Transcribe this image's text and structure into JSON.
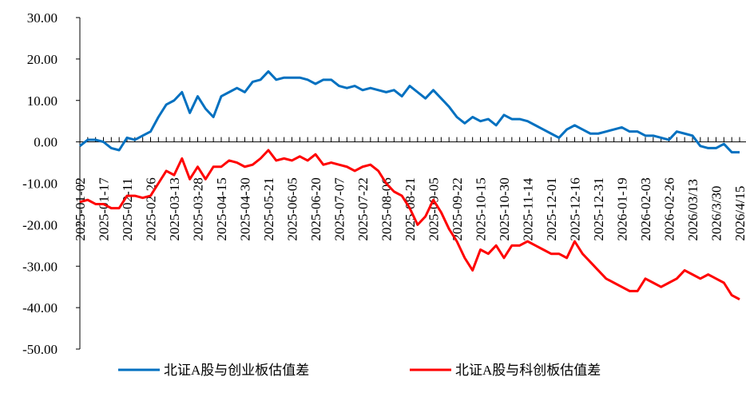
{
  "chart_data": {
    "type": "line",
    "categories": [
      "2025-01-02",
      null,
      null,
      "2025-01-17",
      null,
      null,
      "2025-02-11",
      null,
      null,
      "2025-02-26",
      null,
      null,
      "2025-03-13",
      null,
      null,
      "2025-03-28",
      null,
      null,
      "2025-04-15",
      null,
      null,
      "2025-04-30",
      null,
      null,
      "2025-05-21",
      null,
      null,
      "2025-06-05",
      null,
      null,
      "2025-06-20",
      null,
      null,
      "2025-07-07",
      null,
      null,
      "2025-07-22",
      null,
      null,
      "2025-08-06",
      null,
      null,
      "2025-08-21",
      null,
      null,
      "2025-09-05",
      null,
      null,
      "2025-09-22",
      null,
      null,
      "2025-10-15",
      null,
      null,
      "2025-10-30",
      null,
      null,
      "2025-11-14",
      null,
      null,
      "2025-12-01",
      null,
      null,
      "2025-12-16",
      null,
      null,
      "2025-12-31",
      null,
      null,
      "2026-01-19",
      null,
      null,
      "2026-02-03",
      null,
      null,
      "2026-02-26",
      null,
      null,
      "2026/03/13",
      null,
      null,
      "2026/3/30",
      null,
      null,
      "2026/4/15"
    ],
    "series": [
      {
        "name": "北证A股与创业板估值差",
        "color": "#0070c0",
        "values": [
          -1,
          0.5,
          0.5,
          0,
          -1.5,
          -2,
          1,
          0.5,
          1.5,
          2.5,
          6,
          9,
          10,
          12,
          7,
          11,
          8,
          6,
          11,
          12,
          13,
          12,
          14.5,
          15,
          17,
          15,
          15.5,
          15.5,
          15.5,
          15,
          14,
          15,
          15,
          13.5,
          13,
          13.5,
          12.5,
          13,
          12.5,
          12,
          12.5,
          11,
          13.5,
          12,
          10.5,
          12.5,
          10.5,
          8.5,
          6,
          4.5,
          6,
          5,
          5.5,
          4,
          6.5,
          5.5,
          5.5,
          5,
          4,
          3,
          2,
          1,
          3,
          4,
          3,
          2,
          2,
          2.5,
          3,
          3.5,
          2.5,
          2.5,
          1.5,
          1.5,
          1,
          0.5,
          2.5,
          2,
          1.5,
          -1,
          -1.5,
          -1.5,
          -0.5,
          -2.5,
          -2.5
        ]
      },
      {
        "name": "北证A股与科创板估值差",
        "color": "#ff0000",
        "values": [
          -14.5,
          -14,
          -15,
          -15,
          -16,
          -16,
          -13,
          -13,
          -13.5,
          -13,
          -10,
          -7,
          -8,
          -4,
          -9,
          -6,
          -9,
          -6,
          -6,
          -4.5,
          -5,
          -6,
          -5.5,
          -4,
          -2,
          -4.5,
          -4,
          -4.5,
          -3.5,
          -4.5,
          -3,
          -5.5,
          -5,
          -5.5,
          -6,
          -7,
          -6,
          -5.5,
          -7,
          -10,
          -12,
          -13,
          -16,
          -20,
          -18,
          -14,
          -17,
          -21,
          -24,
          -28,
          -31,
          -26,
          -27,
          -25,
          -28,
          -25,
          -25,
          -24,
          -25,
          -26,
          -27,
          -27,
          -28,
          -24,
          -27,
          -29,
          -31,
          -33,
          -34,
          -35,
          -36,
          -36,
          -33,
          -34,
          -35,
          -34,
          -33,
          -31,
          -32,
          -33,
          -32,
          -33,
          -34,
          -37,
          -38
        ]
      }
    ],
    "ylim": [
      -50,
      30
    ],
    "yticks": [
      {
        "value": -50,
        "label": "-50.00"
      },
      {
        "value": -40,
        "label": "-40.00"
      },
      {
        "value": -30,
        "label": "-30.00"
      },
      {
        "value": -20,
        "label": "-20.00"
      },
      {
        "value": -10,
        "label": "-10.00"
      },
      {
        "value": 0,
        "label": "0.00"
      },
      {
        "value": 10,
        "label": "10.00"
      },
      {
        "value": 20,
        "label": "20.00"
      },
      {
        "value": 30,
        "label": "30.00"
      }
    ],
    "legend": "bottom"
  }
}
